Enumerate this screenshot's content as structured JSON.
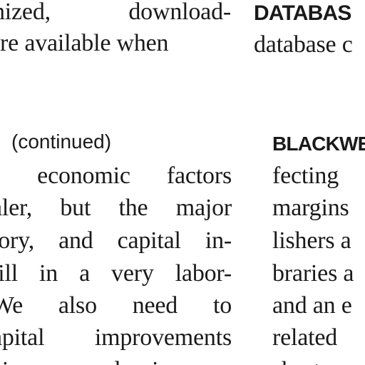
{
  "left_column": {
    "top_lines": [
      "nized, download-",
      "re available when"
    ],
    "continued_label": "(continued)",
    "body_lines": [
      "s economic factors",
      "aler, but the major",
      "tory, and capital in-",
      "till in a very labor-",
      "We also need to",
      "apital improvements",
      "ciency and improve"
    ]
  },
  "right_column": {
    "database_heading": "DATABAS",
    "top_lines": [
      "database c"
    ],
    "blackwell_heading": "BLACKWE",
    "body_lines": [
      "fecting",
      "margins",
      "lishers a",
      "braries a",
      "and an e",
      "related",
      "short"
    ]
  }
}
